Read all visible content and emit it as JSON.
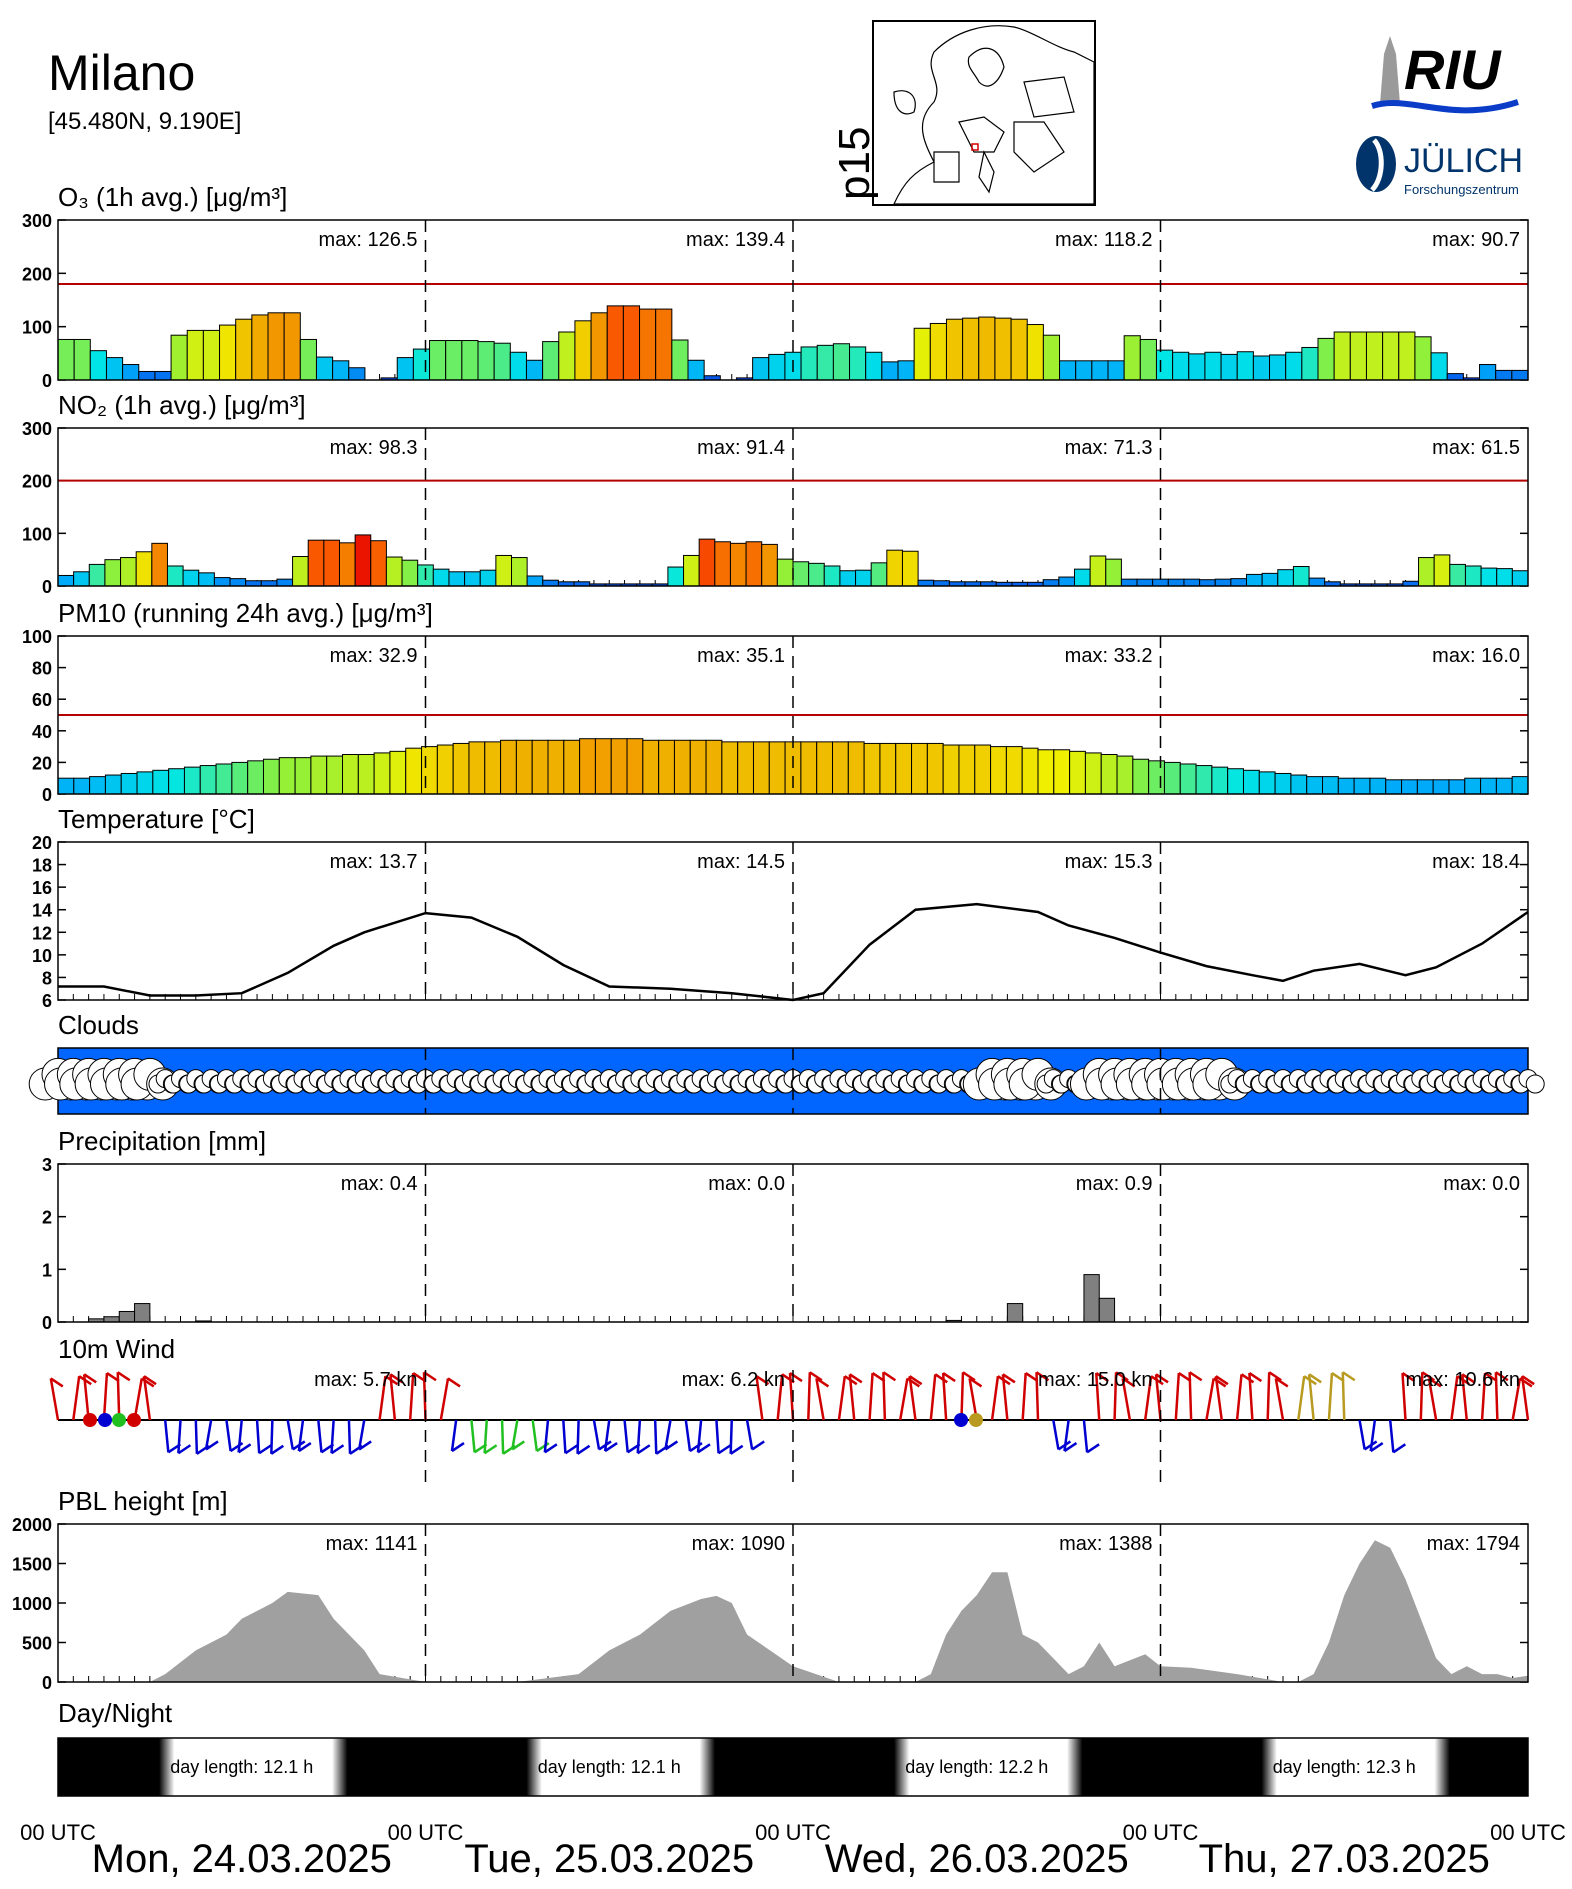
{
  "station": {
    "name": "Milano",
    "coords": "[45.480N,  9.190E]"
  },
  "map": {
    "label": "p15"
  },
  "logos": {
    "riu": "RIU",
    "fzj": "JÜLICH",
    "fzj_sub": "Forschungszentrum"
  },
  "panels": {
    "o3": {
      "title": "O₃ (1h avg.) [μg/m³]",
      "yticks": [
        "300",
        "200",
        "100",
        "0"
      ],
      "max_labels": [
        "max: 126.5",
        "max: 139.4",
        "max: 118.2",
        "max:  90.7"
      ]
    },
    "no2": {
      "title": "NO₂ (1h avg.) [μg/m³]",
      "yticks": [
        "300",
        "200",
        "100",
        "0"
      ],
      "max_labels": [
        "max:  98.3",
        "max:  91.4",
        "max:  71.3",
        "max:  61.5"
      ]
    },
    "pm10": {
      "title": "PM10 (running 24h avg.) [μg/m³]",
      "yticks": [
        "100",
        "80",
        "60",
        "40",
        "20",
        "0"
      ],
      "max_labels": [
        "max:  32.9",
        "max:  35.1",
        "max:  33.2",
        "max:  16.0"
      ]
    },
    "temp": {
      "title": "Temperature [°C]",
      "yticks": [
        "20",
        "18",
        "16",
        "14",
        "12",
        "10",
        "8",
        "6"
      ],
      "max_labels": [
        "max:  13.7",
        "max:  14.5",
        "max:  15.3",
        "max:  18.4"
      ]
    },
    "clouds": {
      "title": "Clouds"
    },
    "precip": {
      "title": "Precipitation [mm]",
      "yticks": [
        "3",
        "2",
        "1",
        "0"
      ],
      "max_labels": [
        "max:   0.4",
        "max:   0.0",
        "max:   0.9",
        "max:   0.0"
      ]
    },
    "wind": {
      "title": "10m Wind",
      "max_labels": [
        "max:   5.7 kn",
        "max:   6.2 kn",
        "max:  15.0 kn",
        "max:  10.6 kn"
      ]
    },
    "pbl": {
      "title": "PBL height [m]",
      "yticks": [
        "2000",
        "1500",
        "1000",
        "500",
        "0"
      ],
      "max_labels": [
        "max:  1141",
        "max:  1090",
        "max:  1388",
        "max:  1794"
      ]
    },
    "daynight": {
      "title": "Day/Night",
      "labels": [
        "day length:  12.1 h",
        "day length:  12.1 h",
        "day length:  12.2 h",
        "day length:  12.3 h"
      ]
    }
  },
  "time_axis": {
    "utc_labels": [
      "00 UTC",
      "00 UTC",
      "00 UTC",
      "00 UTC",
      "00 UTC"
    ],
    "days": [
      "Mon, 24.03.2025",
      "Tue, 25.03.2025",
      "Wed, 26.03.2025",
      "Thu, 27.03.2025"
    ]
  },
  "colors": {
    "limit_line": "#b40000",
    "clouds_bg": "#0066ff",
    "precip_bar": "#808080",
    "pbl_fill": "#a0a0a0"
  },
  "chart_data": [
    {
      "type": "bar",
      "name": "O3",
      "values": [
        76,
        76,
        55,
        42,
        29,
        16,
        16,
        84,
        93,
        93,
        103,
        114,
        122,
        126,
        126,
        76,
        43,
        36,
        23,
        0,
        4,
        42,
        58,
        74,
        74,
        74,
        72,
        69,
        52,
        37,
        72,
        90,
        111,
        126,
        139,
        139,
        133,
        133,
        75,
        37,
        8,
        0,
        4,
        42,
        48,
        52,
        62,
        65,
        68,
        62,
        52,
        34,
        36,
        97,
        106,
        114,
        116,
        118,
        116,
        114,
        104,
        84,
        36,
        36,
        36,
        36,
        83,
        76,
        56,
        52,
        49,
        52,
        48,
        53,
        45,
        47,
        52,
        61,
        78,
        90,
        90,
        90,
        90,
        90,
        81,
        51,
        12,
        4,
        29,
        18,
        18
      ],
      "ylim": [
        0,
        300
      ],
      "limit": 180
    },
    {
      "type": "bar",
      "name": "NO2",
      "values": [
        20,
        27,
        41,
        50,
        54,
        65,
        81,
        38,
        30,
        25,
        16,
        14,
        10,
        10,
        13,
        56,
        87,
        87,
        82,
        97,
        86,
        55,
        49,
        40,
        32,
        27,
        27,
        30,
        58,
        54,
        19,
        11,
        8,
        8,
        4,
        4,
        4,
        4,
        4,
        36,
        58,
        89,
        84,
        81,
        84,
        79,
        51,
        46,
        43,
        38,
        29,
        30,
        44,
        68,
        66,
        11,
        10,
        8,
        8,
        8,
        7,
        7,
        7,
        12,
        17,
        32,
        57,
        51,
        13,
        13,
        13,
        13,
        13,
        12,
        13,
        14,
        22,
        24,
        31,
        37,
        15,
        8,
        4,
        4,
        4,
        4,
        9,
        54,
        59,
        41,
        38,
        34,
        33,
        29
      ],
      "ylim": [
        0,
        300
      ],
      "limit": 200
    },
    {
      "type": "bar",
      "name": "PM10",
      "values": [
        10,
        10,
        11,
        12,
        13,
        14,
        15,
        16,
        17,
        18,
        19,
        20,
        21,
        22,
        23,
        23,
        24,
        24,
        25,
        25,
        26,
        27,
        29,
        30,
        31,
        32,
        33,
        33,
        34,
        34,
        34,
        34,
        34,
        35,
        35,
        35,
        35,
        34,
        34,
        34,
        34,
        34,
        33,
        33,
        33,
        33,
        33,
        33,
        33,
        33,
        33,
        32,
        32,
        32,
        32,
        32,
        31,
        31,
        31,
        30,
        30,
        29,
        28,
        28,
        27,
        26,
        25,
        24,
        22,
        21,
        20,
        19,
        18,
        17,
        16,
        15,
        14,
        13,
        12,
        11,
        11,
        10,
        10,
        10,
        9,
        9,
        9,
        9,
        9,
        10,
        10,
        10,
        11
      ],
      "ylim": [
        0,
        100
      ],
      "limit": 50
    },
    {
      "type": "line",
      "name": "Temperature",
      "x": [
        0,
        3,
        6,
        9,
        12,
        15,
        18,
        20,
        24,
        27,
        30,
        33,
        36,
        40,
        44,
        48,
        50,
        53,
        56,
        60,
        64,
        66,
        69,
        72,
        75,
        78,
        80,
        82,
        85,
        88,
        90,
        93,
        96
      ],
      "values": [
        7.2,
        7.2,
        6.4,
        6.4,
        6.6,
        8.4,
        10.8,
        12.0,
        13.7,
        13.3,
        11.6,
        9.1,
        7.2,
        7.0,
        6.6,
        6.0,
        6.6,
        10.9,
        14.0,
        14.5,
        13.8,
        12.6,
        11.5,
        10.2,
        9.0,
        8.2,
        7.7,
        8.6,
        9.2,
        8.2,
        8.9,
        11.0,
        13.8
      ],
      "ylim": [
        6,
        20
      ]
    },
    {
      "type": "bar",
      "name": "Precipitation",
      "x": [
        2,
        3,
        4,
        5,
        9,
        58,
        62,
        67,
        68
      ],
      "values": [
        0.06,
        0.1,
        0.2,
        0.35,
        0.02,
        0.03,
        0.35,
        0.9,
        0.45
      ],
      "ylim": [
        0,
        3
      ]
    },
    {
      "type": "area",
      "name": "PBL height",
      "x": [
        0,
        6,
        7,
        9,
        11,
        12,
        14,
        15,
        17,
        18,
        20,
        21,
        24,
        25,
        30,
        34,
        36,
        38,
        40,
        42,
        43,
        44,
        45,
        48,
        51,
        53,
        54,
        56,
        57,
        58,
        59,
        60,
        61,
        62,
        63,
        64,
        65,
        66,
        67,
        68,
        69,
        71,
        72,
        74,
        77,
        80,
        81,
        82,
        83,
        84,
        85,
        86,
        87,
        88,
        89,
        90,
        91,
        92,
        93,
        94,
        95,
        96
      ],
      "values": [
        0,
        0,
        100,
        400,
        600,
        800,
        1000,
        1140,
        1100,
        800,
        400,
        100,
        0,
        0,
        0,
        100,
        400,
        600,
        900,
        1050,
        1090,
        1000,
        600,
        200,
        0,
        0,
        0,
        0,
        100,
        600,
        900,
        1100,
        1388,
        1388,
        600,
        500,
        300,
        100,
        200,
        500,
        200,
        350,
        200,
        180,
        100,
        0,
        0,
        100,
        500,
        1100,
        1500,
        1794,
        1700,
        1300,
        800,
        300,
        100,
        200,
        100,
        100,
        50,
        80
      ],
      "ylim": [
        0,
        2000
      ]
    }
  ]
}
